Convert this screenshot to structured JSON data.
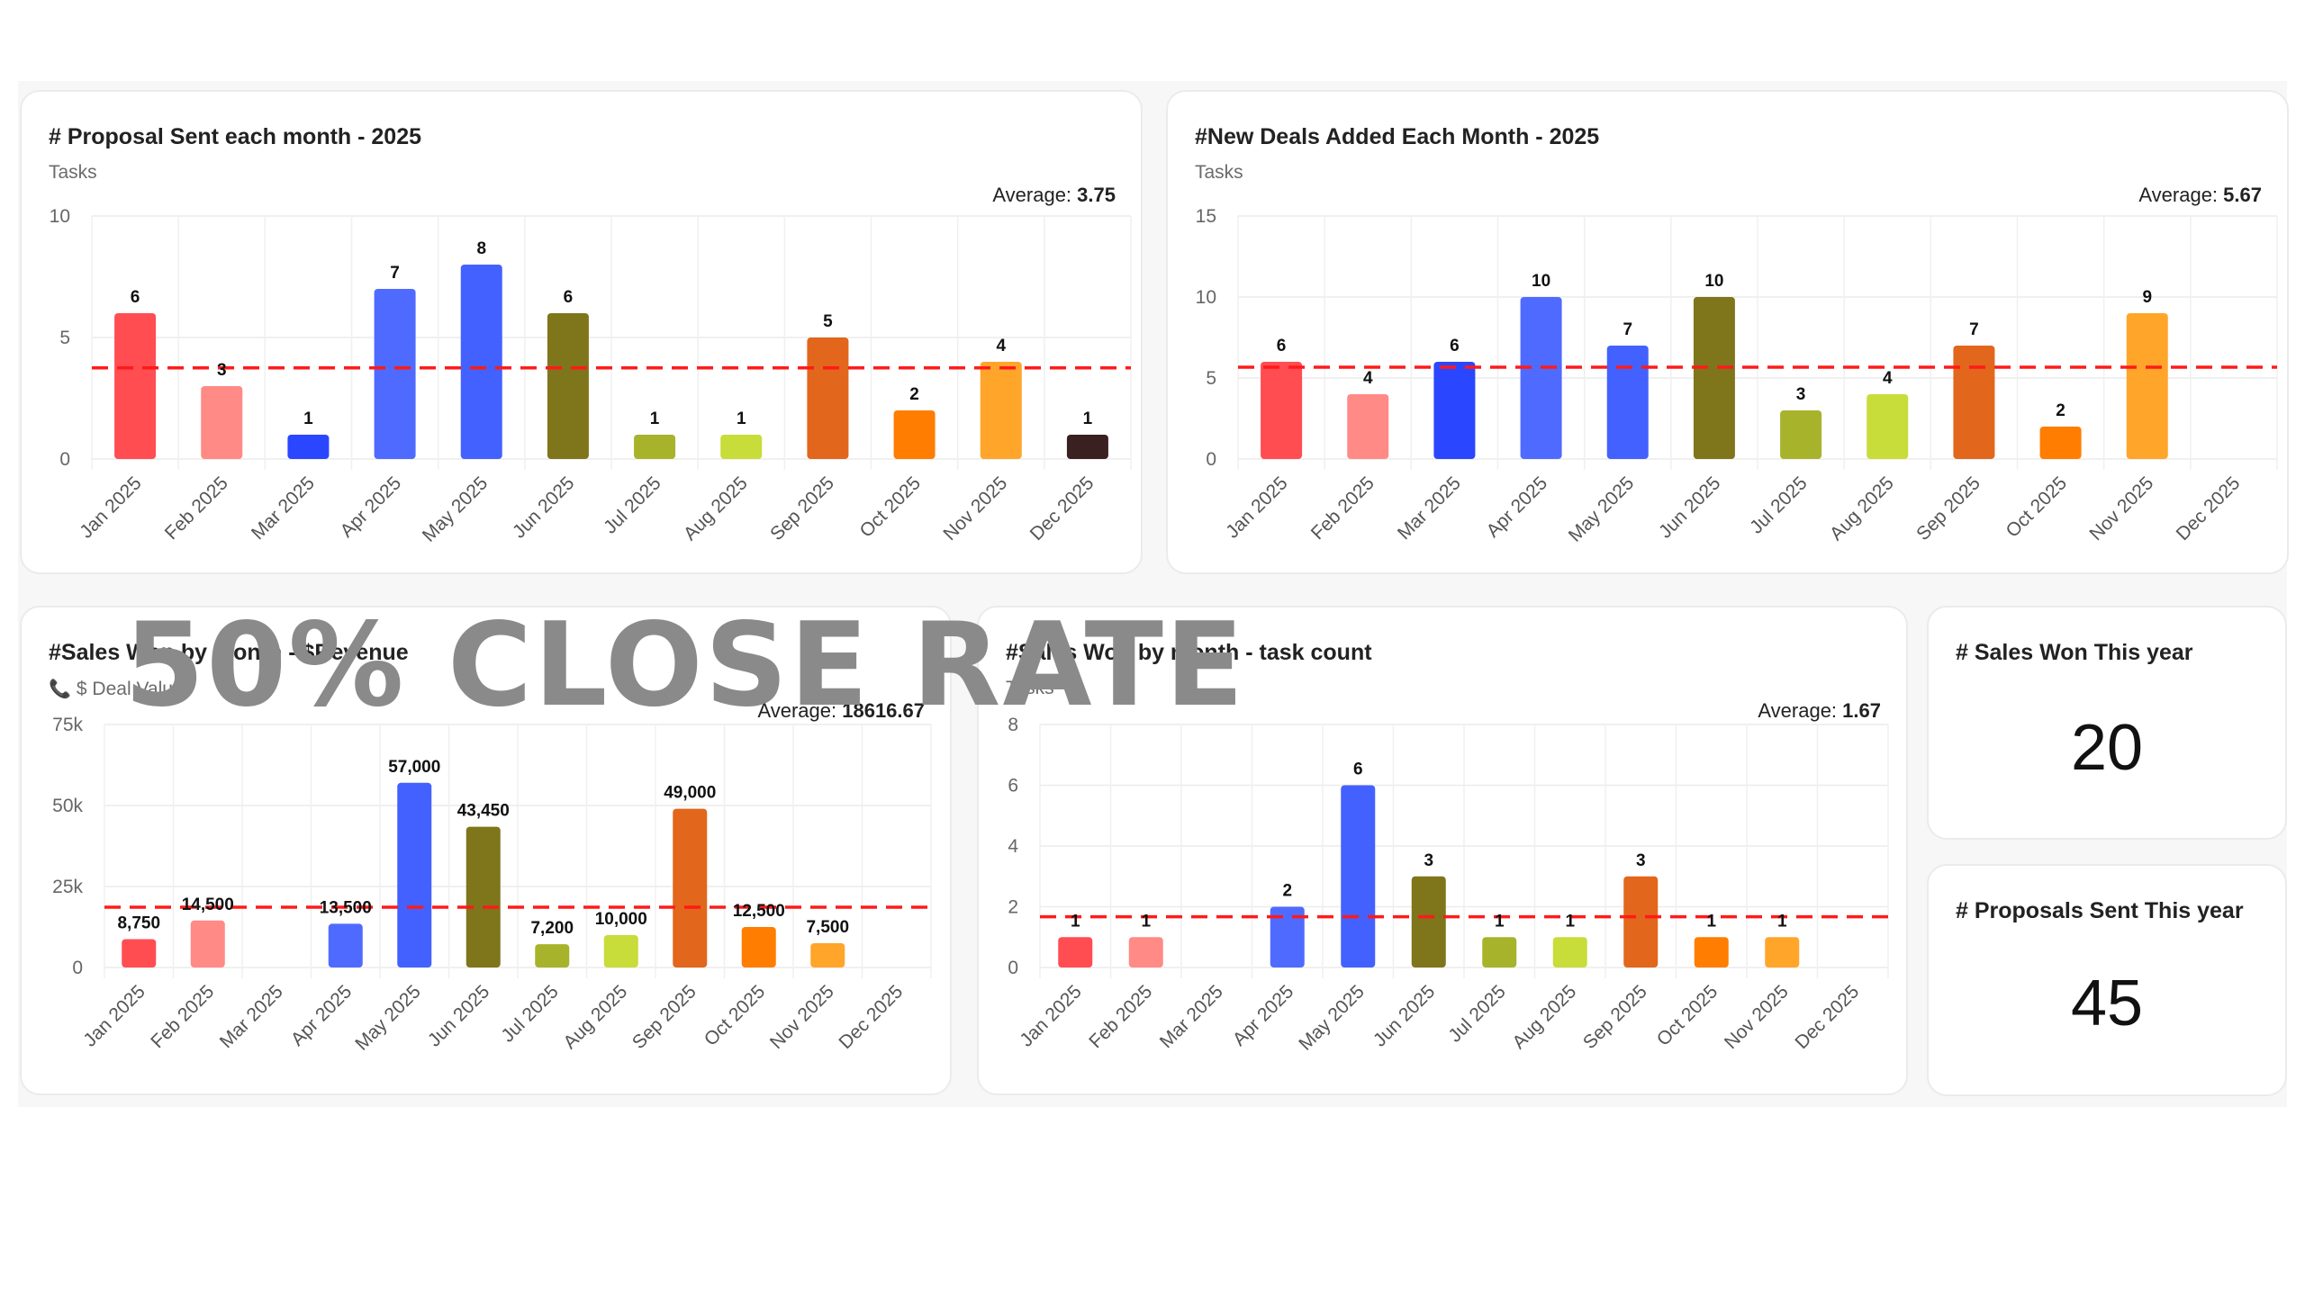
{
  "overlay": {
    "text": "50% CLOSE RATE"
  },
  "charts": [
    {
      "title": "# Proposal Sent each month - 2025",
      "subtitle": "Tasks",
      "subtitle_icon": "",
      "average_label": "Average:",
      "average_value": "3.75"
    },
    {
      "title": "#New Deals Added Each Month - 2025",
      "subtitle": "Tasks",
      "subtitle_icon": "",
      "average_label": "Average:",
      "average_value": "5.67"
    },
    {
      "title": "#Sales Won by month - $Revenue",
      "subtitle": "$ Deal Value",
      "subtitle_icon": "phone-icon",
      "average_label": "Average:",
      "average_value": "18616.67"
    },
    {
      "title": "#Sales Won by month - task count",
      "subtitle": "Tasks",
      "subtitle_icon": "",
      "average_label": "Average:",
      "average_value": "1.67"
    }
  ],
  "kpis": [
    {
      "title": "# Sales Won This year",
      "value": "20"
    },
    {
      "title": "# Proposals Sent This year",
      "value": "45"
    }
  ],
  "colors": {
    "average_line": "#ff1a1a",
    "month_colors": [
      "#ff4d52",
      "#ff8a86",
      "#2b46ff",
      "#4f6bff",
      "#4361ff",
      "#7f751b",
      "#a7b32a",
      "#c8dc3a",
      "#e2661b",
      "#ff7d00",
      "#ffa52a",
      "#3a2020"
    ]
  },
  "chart_data": [
    {
      "type": "bar",
      "title": "# Proposal Sent each month - 2025",
      "ylabel": "Tasks",
      "categories": [
        "Jan 2025",
        "Feb 2025",
        "Mar 2025",
        "Apr 2025",
        "May 2025",
        "Jun 2025",
        "Jul 2025",
        "Aug 2025",
        "Sep 2025",
        "Oct 2025",
        "Nov 2025",
        "Dec 2025"
      ],
      "values": [
        6,
        3,
        1,
        7,
        8,
        6,
        1,
        1,
        5,
        2,
        4,
        1
      ],
      "value_labels": [
        "6",
        "3",
        "1",
        "7",
        "8",
        "6",
        "1",
        "1",
        "5",
        "2",
        "4",
        "1"
      ],
      "y_ticks": [
        0,
        5,
        10
      ],
      "y_tick_labels": [
        "0",
        "5",
        "10"
      ],
      "ylim": [
        0,
        10
      ],
      "average": 3.75,
      "grid": true
    },
    {
      "type": "bar",
      "title": "#New Deals Added Each Month - 2025",
      "ylabel": "Tasks",
      "categories": [
        "Jan 2025",
        "Feb 2025",
        "Mar 2025",
        "Apr 2025",
        "May 2025",
        "Jun 2025",
        "Jul 2025",
        "Aug 2025",
        "Sep 2025",
        "Oct 2025",
        "Nov 2025",
        "Dec 2025"
      ],
      "values": [
        6,
        4,
        6,
        10,
        7,
        10,
        3,
        4,
        7,
        2,
        9,
        null
      ],
      "value_labels": [
        "6",
        "4",
        "6",
        "10",
        "7",
        "10",
        "3",
        "4",
        "7",
        "2",
        "9",
        ""
      ],
      "y_ticks": [
        0,
        5,
        10,
        15
      ],
      "y_tick_labels": [
        "0",
        "5",
        "10",
        "15"
      ],
      "ylim": [
        0,
        15
      ],
      "average": 5.67,
      "grid": true
    },
    {
      "type": "bar",
      "title": "#Sales Won by month - $Revenue",
      "ylabel": "$ Deal Value",
      "categories": [
        "Jan 2025",
        "Feb 2025",
        "Mar 2025",
        "Apr 2025",
        "May 2025",
        "Jun 2025",
        "Jul 2025",
        "Aug 2025",
        "Sep 2025",
        "Oct 2025",
        "Nov 2025",
        "Dec 2025"
      ],
      "values": [
        8750,
        14500,
        null,
        13500,
        57000,
        43450,
        7200,
        10000,
        49000,
        12500,
        7500,
        null
      ],
      "value_labels": [
        "8,750",
        "14,500",
        "",
        "13,500",
        "57,000",
        "43,450",
        "7,200",
        "10,000",
        "49,000",
        "12,500",
        "7,500",
        ""
      ],
      "y_ticks": [
        0,
        25000,
        50000,
        75000
      ],
      "y_tick_labels": [
        "0",
        "25k",
        "50k",
        "75k"
      ],
      "ylim": [
        0,
        75000
      ],
      "average": 18616.67,
      "grid": true
    },
    {
      "type": "bar",
      "title": "#Sales Won by month - task count",
      "ylabel": "Tasks",
      "categories": [
        "Jan 2025",
        "Feb 2025",
        "Mar 2025",
        "Apr 2025",
        "May 2025",
        "Jun 2025",
        "Jul 2025",
        "Aug 2025",
        "Sep 2025",
        "Oct 2025",
        "Nov 2025",
        "Dec 2025"
      ],
      "values": [
        1,
        1,
        null,
        2,
        6,
        3,
        1,
        1,
        3,
        1,
        1,
        null
      ],
      "value_labels": [
        "1",
        "1",
        "",
        "2",
        "6",
        "3",
        "1",
        "1",
        "3",
        "1",
        "1",
        ""
      ],
      "y_ticks": [
        0,
        2,
        4,
        6,
        8
      ],
      "y_tick_labels": [
        "0",
        "2",
        "4",
        "6",
        "8"
      ],
      "ylim": [
        0,
        8
      ],
      "average": 1.67,
      "grid": true
    }
  ]
}
